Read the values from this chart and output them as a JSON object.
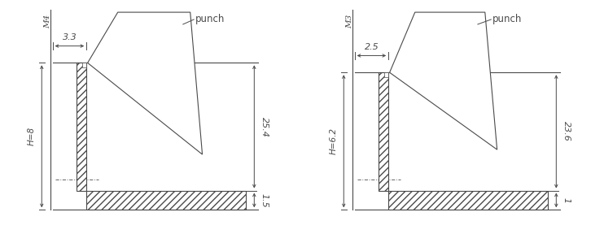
{
  "bg_color": "#ffffff",
  "line_color": "#4a4a4a",
  "text_color": "#4a4a4a",
  "diagrams": [
    {
      "label": "M4",
      "dim_hole": "3.3",
      "dim_height": "H=8",
      "dim_punch_len": "25.4",
      "dim_base": "1.5",
      "punch_label": "punch"
    },
    {
      "label": "M3",
      "dim_hole": "2.5",
      "dim_height": "H=6.2",
      "dim_punch_len": "23.6",
      "dim_base": "1",
      "punch_label": "punch"
    }
  ]
}
